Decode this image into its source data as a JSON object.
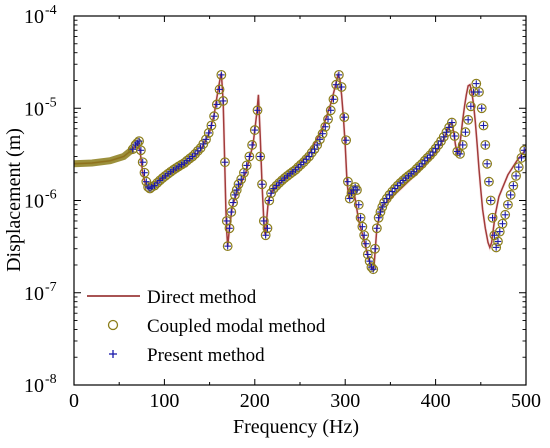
{
  "chart_data": {
    "type": "line",
    "title": "",
    "xlabel": "Frequency (Hz)",
    "ylabel": "Displacement (m)",
    "xlim": [
      0,
      500
    ],
    "ylim": [
      1e-08,
      0.0001
    ],
    "yscale": "log",
    "grid": false,
    "legend_position": "bottom-left",
    "x_ticks": [
      0,
      100,
      200,
      300,
      400,
      500
    ],
    "x_tick_labels": [
      "0",
      "100",
      "200",
      "300",
      "400",
      "500"
    ],
    "y_tick_labels": [
      {
        "base": "10",
        "exp": "-8"
      },
      {
        "base": "10",
        "exp": "-7"
      },
      {
        "base": "10",
        "exp": "-6"
      },
      {
        "base": "10",
        "exp": "-5"
      },
      {
        "base": "10",
        "exp": "-4"
      }
    ],
    "series": [
      {
        "name": "Direct method",
        "style": "line",
        "color": "#8b1a1a",
        "x": [
          0,
          20,
          40,
          55,
          65,
          70,
          73,
          76,
          79,
          82,
          85,
          90,
          100,
          120,
          140,
          150,
          155,
          158,
          160,
          162,
          163,
          165,
          167,
          168,
          169,
          170,
          172,
          175,
          180,
          190,
          198,
          202,
          204,
          206,
          208,
          210,
          211,
          212,
          213,
          215,
          220,
          240,
          260,
          275,
          285,
          290,
          292,
          294,
          296,
          298,
          300,
          302,
          304,
          306,
          310,
          315,
          320,
          325,
          328,
          330,
          331,
          332,
          335,
          340,
          360,
          380,
          400,
          410,
          415,
          418,
          420,
          422,
          424,
          426,
          428,
          430,
          432,
          434,
          436,
          438,
          440,
          442,
          444,
          446,
          448,
          450,
          452,
          455,
          458,
          460,
          462,
          463,
          464,
          466,
          470,
          480,
          490,
          500
        ],
        "y": [
          2.5e-06,
          2.55e-06,
          2.7e-06,
          3e-06,
          3.6e-06,
          4.2e-06,
          3.5e-06,
          2e-06,
          1.5e-06,
          1.35e-06,
          1.4e-06,
          1.55e-06,
          1.8e-06,
          2.3e-06,
          3.5e-06,
          5.5e-06,
          8.5e-06,
          1.3e-05,
          1.7e-05,
          2.2e-05,
          2.4e-05,
          1.2e-05,
          2e-06,
          8e-07,
          4.5e-07,
          3.2e-07,
          5e-07,
          8.5e-07,
          1.2e-06,
          2e-06,
          4e-06,
          8.5e-06,
          1.4e-05,
          5e-06,
          1.5e-06,
          6e-07,
          4.5e-07,
          4.2e-07,
          6e-07,
          1e-06,
          1.3e-06,
          2e-06,
          3.2e-06,
          6e-06,
          1.2e-05,
          1.9e-05,
          2.3e-05,
          2.1e-05,
          1.4e-05,
          8e-06,
          4e-06,
          1.6e-06,
          1.05e-06,
          1.3e-06,
          1.2e-06,
          6e-07,
          4e-07,
          2.5e-07,
          2e-07,
          1.8e-07,
          1.8e-07,
          2e-07,
          5e-07,
          8.5e-07,
          1.3e-06,
          2e-06,
          3.3e-06,
          4.8e-06,
          6.5e-06,
          7e-06,
          5.5e-06,
          4e-06,
          3.2e-06,
          3.5e-06,
          5e-06,
          7.5e-06,
          1.05e-05,
          1.4e-05,
          1.75e-05,
          1.8e-05,
          1.5e-05,
          1.1e-05,
          7e-06,
          4e-06,
          2.2e-06,
          1.3e-06,
          8e-07,
          5e-07,
          3.5e-07,
          3.1e-07,
          3.5e-07,
          4.2e-07,
          5e-07,
          7e-07,
          1.1e-06,
          1.9e-06,
          2.7e-06,
          3.6e-06
        ]
      },
      {
        "name": "Coupled modal method",
        "style": "circle",
        "color": "#8b7d1a",
        "x": [
          65,
          68,
          70,
          72,
          74,
          76,
          78,
          80,
          82,
          84,
          86,
          89,
          92,
          95,
          98,
          101,
          104,
          107,
          110,
          113,
          116,
          119,
          122,
          125,
          128,
          131,
          134,
          137,
          140,
          143,
          146,
          149,
          152,
          155,
          158,
          161,
          163,
          165,
          167,
          169,
          170,
          172,
          174,
          176,
          178,
          180,
          182,
          185,
          188,
          191,
          194,
          197,
          200,
          203,
          206,
          208,
          210,
          212,
          214,
          216,
          218,
          221,
          224,
          227,
          230,
          233,
          236,
          239,
          242,
          245,
          248,
          251,
          254,
          257,
          260,
          263,
          266,
          269,
          272,
          275,
          278,
          281,
          284,
          287,
          290,
          293,
          296,
          299,
          301,
          303,
          305,
          307,
          309,
          311,
          313,
          315,
          317,
          319,
          321,
          323,
          325,
          327,
          329,
          331,
          333,
          335,
          337,
          339,
          341,
          343,
          346,
          349,
          352,
          355,
          358,
          361,
          364,
          367,
          370,
          373,
          376,
          379,
          382,
          385,
          388,
          391,
          394,
          397,
          400,
          403,
          406,
          409,
          412,
          415,
          418,
          421,
          424,
          427,
          430,
          433,
          436,
          439,
          442,
          445,
          448,
          451,
          453,
          455,
          457,
          459,
          461,
          463,
          465,
          467,
          469,
          471,
          474,
          477,
          480,
          483,
          486,
          489,
          492,
          495,
          498
        ],
        "y": [
          3.6e-06,
          4e-06,
          4.2e-06,
          4.4e-06,
          3.5e-06,
          2.6e-06,
          2e-06,
          1.6e-06,
          1.4e-06,
          1.35e-06,
          1.4e-06,
          1.45e-06,
          1.55e-06,
          1.65e-06,
          1.75e-06,
          1.85e-06,
          1.95e-06,
          2.05e-06,
          2.15e-06,
          2.25e-06,
          2.35e-06,
          2.45e-06,
          2.55e-06,
          2.7e-06,
          2.85e-06,
          3e-06,
          3.2e-06,
          3.45e-06,
          3.7e-06,
          4.1e-06,
          4.6e-06,
          5.4e-06,
          6.5e-06,
          8.2e-06,
          1.1e-05,
          1.6e-05,
          2.3e-05,
          1.2e-05,
          2.6e-06,
          6e-07,
          3.2e-07,
          5e-07,
          7.5e-07,
          9.5e-07,
          1.15e-06,
          1.3e-06,
          1.5e-06,
          1.7e-06,
          2e-06,
          2.4e-06,
          3e-06,
          4e-06,
          5.8e-06,
          9.5e-06,
          3e-06,
          1.5e-06,
          6e-07,
          4.2e-07,
          5e-07,
          1e-06,
          1.2e-06,
          1.35e-06,
          1.45e-06,
          1.55e-06,
          1.65e-06,
          1.75e-06,
          1.85e-06,
          1.95e-06,
          2.05e-06,
          2.15e-06,
          2.3e-06,
          2.45e-06,
          2.6e-06,
          2.8e-06,
          3e-06,
          3.3e-06,
          3.6e-06,
          4e-06,
          4.6e-06,
          5.3e-06,
          6.3e-06,
          7.6e-06,
          9.5e-06,
          1.25e-05,
          1.8e-05,
          2.3e-05,
          1.7e-05,
          8e-06,
          4.5e-06,
          1.6e-06,
          1.05e-06,
          1.2e-06,
          1.3e-06,
          1.4e-06,
          1.3e-06,
          9e-07,
          6.5e-07,
          5.2e-07,
          4.2e-07,
          3.4e-07,
          2.6e-07,
          2.2e-07,
          1.9e-07,
          1.8e-07,
          3e-07,
          5e-07,
          6.5e-07,
          7.5e-07,
          8.5e-07,
          9.5e-07,
          1.05e-06,
          1.15e-06,
          1.25e-06,
          1.35e-06,
          1.45e-06,
          1.55e-06,
          1.65e-06,
          1.75e-06,
          1.85e-06,
          1.95e-06,
          2.05e-06,
          2.2e-06,
          2.35e-06,
          2.5e-06,
          2.7e-06,
          2.9e-06,
          3.1e-06,
          3.35e-06,
          3.65e-06,
          4e-06,
          4.4e-06,
          4.9e-06,
          5.5e-06,
          6.2e-06,
          7e-06,
          5e-06,
          3.4e-06,
          3.2e-06,
          4e-06,
          5.5e-06,
          7.5e-06,
          1.05e-05,
          1.5e-05,
          1.85e-05,
          1.5e-05,
          1e-05,
          6.5e-06,
          4e-06,
          2.5e-06,
          1.6e-06,
          1e-06,
          6.5e-07,
          4.2e-07,
          3.1e-07,
          3.6e-07,
          4.6e-07,
          5.6e-07,
          7e-07,
          9e-07,
          1.15e-06,
          1.45e-06,
          1.85e-06,
          2.3e-06,
          2.9e-06,
          3.5e-06
        ]
      },
      {
        "name": "Present method",
        "style": "plus",
        "color": "#1a1aaa",
        "x": [
          65,
          68,
          70,
          72,
          74,
          76,
          78,
          80,
          82,
          84,
          86,
          89,
          92,
          95,
          98,
          101,
          104,
          107,
          110,
          113,
          116,
          119,
          122,
          125,
          128,
          131,
          134,
          137,
          140,
          143,
          146,
          149,
          152,
          155,
          158,
          161,
          163,
          165,
          167,
          169,
          170,
          172,
          174,
          176,
          178,
          180,
          182,
          185,
          188,
          191,
          194,
          197,
          200,
          203,
          206,
          208,
          210,
          212,
          214,
          216,
          218,
          221,
          224,
          227,
          230,
          233,
          236,
          239,
          242,
          245,
          248,
          251,
          254,
          257,
          260,
          263,
          266,
          269,
          272,
          275,
          278,
          281,
          284,
          287,
          290,
          293,
          296,
          299,
          301,
          303,
          305,
          307,
          309,
          311,
          313,
          315,
          317,
          319,
          321,
          323,
          325,
          327,
          329,
          331,
          333,
          335,
          337,
          339,
          341,
          343,
          346,
          349,
          352,
          355,
          358,
          361,
          364,
          367,
          370,
          373,
          376,
          379,
          382,
          385,
          388,
          391,
          394,
          397,
          400,
          403,
          406,
          409,
          412,
          415,
          418,
          421,
          424,
          427,
          430,
          433,
          436,
          439,
          442,
          445,
          448,
          451,
          453,
          455,
          457,
          459,
          461,
          463,
          465,
          467,
          469,
          471,
          474,
          477,
          480,
          483,
          486,
          489,
          492,
          495,
          498
        ],
        "y": [
          3.6e-06,
          4e-06,
          4.2e-06,
          4.4e-06,
          3.5e-06,
          2.6e-06,
          2e-06,
          1.6e-06,
          1.4e-06,
          1.35e-06,
          1.4e-06,
          1.45e-06,
          1.55e-06,
          1.65e-06,
          1.75e-06,
          1.85e-06,
          1.95e-06,
          2.05e-06,
          2.15e-06,
          2.25e-06,
          2.35e-06,
          2.45e-06,
          2.55e-06,
          2.7e-06,
          2.85e-06,
          3e-06,
          3.2e-06,
          3.45e-06,
          3.7e-06,
          4.1e-06,
          4.6e-06,
          5.4e-06,
          6.5e-06,
          8.2e-06,
          1.1e-05,
          1.6e-05,
          2.3e-05,
          1.2e-05,
          2.6e-06,
          6e-07,
          3.2e-07,
          5e-07,
          7.5e-07,
          9.5e-07,
          1.15e-06,
          1.3e-06,
          1.5e-06,
          1.7e-06,
          2e-06,
          2.4e-06,
          3e-06,
          4e-06,
          5.8e-06,
          9.5e-06,
          3e-06,
          1.5e-06,
          6e-07,
          4.2e-07,
          5e-07,
          1e-06,
          1.2e-06,
          1.35e-06,
          1.45e-06,
          1.55e-06,
          1.65e-06,
          1.75e-06,
          1.85e-06,
          1.95e-06,
          2.05e-06,
          2.15e-06,
          2.3e-06,
          2.45e-06,
          2.6e-06,
          2.8e-06,
          3e-06,
          3.3e-06,
          3.6e-06,
          4e-06,
          4.6e-06,
          5.3e-06,
          6.3e-06,
          7.6e-06,
          9.5e-06,
          1.25e-05,
          1.8e-05,
          2.3e-05,
          1.7e-05,
          8e-06,
          4.5e-06,
          1.6e-06,
          1.05e-06,
          1.2e-06,
          1.3e-06,
          1.4e-06,
          1.3e-06,
          9e-07,
          6.5e-07,
          5.2e-07,
          4.2e-07,
          3.4e-07,
          2.6e-07,
          2.2e-07,
          1.9e-07,
          1.8e-07,
          3e-07,
          5e-07,
          6.5e-07,
          7.5e-07,
          8.5e-07,
          9.5e-07,
          1.05e-06,
          1.15e-06,
          1.25e-06,
          1.35e-06,
          1.45e-06,
          1.55e-06,
          1.65e-06,
          1.75e-06,
          1.85e-06,
          1.95e-06,
          2.05e-06,
          2.2e-06,
          2.35e-06,
          2.5e-06,
          2.7e-06,
          2.9e-06,
          3.1e-06,
          3.35e-06,
          3.65e-06,
          4e-06,
          4.4e-06,
          4.9e-06,
          5.5e-06,
          6.2e-06,
          7e-06,
          5e-06,
          3.4e-06,
          3.2e-06,
          4e-06,
          5.5e-06,
          7.5e-06,
          1.05e-05,
          1.5e-05,
          1.85e-05,
          1.5e-05,
          1e-05,
          6.5e-06,
          4e-06,
          2.5e-06,
          1.6e-06,
          1e-06,
          6.5e-07,
          4.2e-07,
          3.1e-07,
          3.6e-07,
          4.6e-07,
          5.6e-07,
          7e-07,
          9e-07,
          1.15e-06,
          1.45e-06,
          1.85e-06,
          2.3e-06,
          2.9e-06,
          3.5e-06
        ]
      }
    ],
    "legend": [
      {
        "label": "Direct method",
        "marker": "line",
        "color": "#8b1a1a"
      },
      {
        "label": "Coupled modal method",
        "marker": "circle",
        "color": "#8b7d1a"
      },
      {
        "label": "Present method",
        "marker": "plus",
        "color": "#1a1aaa"
      }
    ]
  }
}
